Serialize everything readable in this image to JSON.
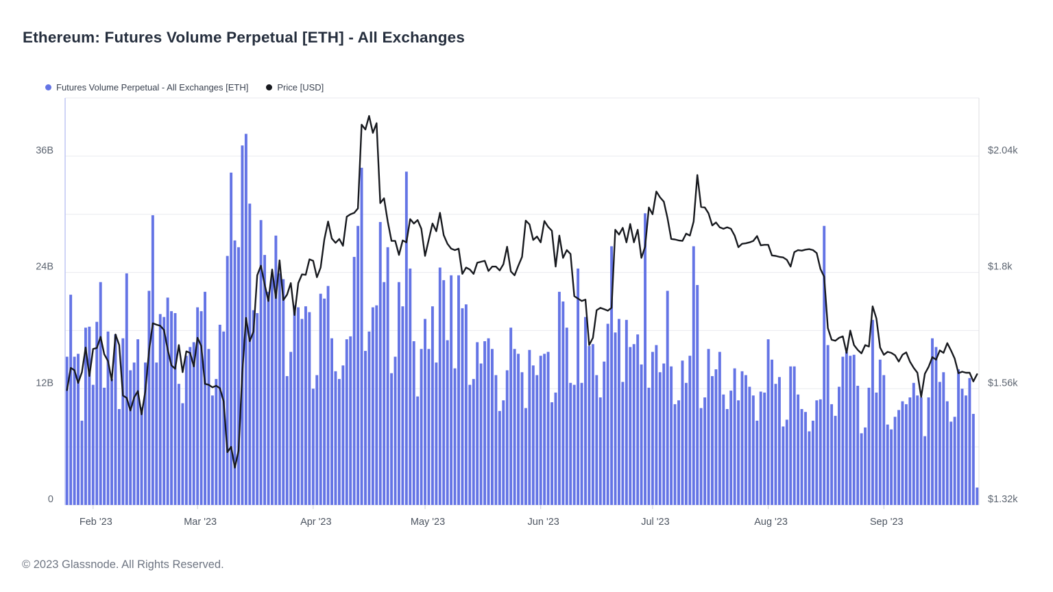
{
  "page": {
    "title": "Ethereum: Futures Volume Perpetual [ETH] - All Exchanges",
    "footer": "© 2023 Glassnode. All Rights Reserved."
  },
  "chart_data": {
    "type": "bar+line",
    "title": "Ethereum: Futures Volume Perpetual [ETH] - All Exchanges",
    "start_date": "2023-01-25",
    "end_date": "2023-09-26",
    "grid": "horizontal",
    "legend_position": "top-left",
    "x_months": [
      {
        "label": "Feb '23",
        "day_index": 7
      },
      {
        "label": "Mar '23",
        "day_index": 35
      },
      {
        "label": "Apr '23",
        "day_index": 66
      },
      {
        "label": "May '23",
        "day_index": 96
      },
      {
        "label": "Jun '23",
        "day_index": 127
      },
      {
        "label": "Jul '23",
        "day_index": 157
      },
      {
        "label": "Aug '23",
        "day_index": 188
      },
      {
        "label": "Sep '23",
        "day_index": 219
      }
    ],
    "y_left": {
      "unit": "B",
      "min": 0,
      "max": 42,
      "grid_step": 6,
      "ticks": [
        {
          "value": 0,
          "label": "0"
        },
        {
          "value": 12,
          "label": "12B"
        },
        {
          "value": 24,
          "label": "24B"
        },
        {
          "value": 36,
          "label": "36B"
        }
      ]
    },
    "y_right": {
      "unit": "USD",
      "min": 1320,
      "max": 2160,
      "ticks": [
        {
          "value": 1320,
          "label": "$1.32k"
        },
        {
          "value": 1560,
          "label": "$1.56k"
        },
        {
          "value": 1800,
          "label": "$1.8k"
        },
        {
          "value": 2040,
          "label": "$2.04k"
        }
      ]
    },
    "series": [
      {
        "name": "Futures Volume Perpetual - All Exchanges [ETH]",
        "type": "bar",
        "axis": "left",
        "color": "#6474e5",
        "unit": "billion USD",
        "values": [
          15.3,
          21.7,
          15.3,
          15.6,
          8.7,
          18.3,
          18.4,
          12.4,
          18.9,
          23.0,
          12.1,
          17.9,
          13.0,
          17.6,
          9.9,
          17.2,
          23.9,
          13.9,
          14.7,
          17.1,
          10.1,
          14.7,
          22.1,
          29.9,
          14.7,
          19.7,
          19.4,
          21.4,
          20.0,
          19.8,
          12.5,
          10.5,
          15.4,
          16.3,
          16.8,
          20.4,
          20.0,
          22.0,
          16.1,
          11.3,
          13.0,
          18.6,
          17.9,
          25.7,
          34.3,
          27.3,
          26.6,
          37.1,
          38.3,
          31.1,
          20.1,
          19.8,
          29.4,
          25.8,
          22.0,
          23.7,
          27.8,
          23.9,
          23.3,
          13.3,
          15.8,
          20.6,
          20.4,
          19.2,
          20.5,
          19.9,
          12.0,
          13.4,
          21.8,
          21.3,
          22.6,
          17.2,
          13.8,
          13.0,
          14.4,
          17.1,
          17.4,
          25.6,
          28.8,
          34.8,
          15.9,
          17.9,
          20.4,
          20.6,
          29.2,
          23.0,
          26.6,
          13.6,
          15.3,
          23.0,
          20.5,
          34.4,
          24.4,
          16.9,
          11.2,
          16.1,
          19.2,
          16.1,
          20.5,
          14.7,
          24.5,
          23.2,
          17.0,
          23.7,
          14.1,
          23.7,
          20.3,
          20.7,
          12.4,
          13.0,
          16.8,
          14.6,
          16.9,
          17.2,
          16.1,
          13.4,
          9.7,
          10.8,
          13.9,
          18.3,
          16.1,
          15.6,
          13.7,
          10.0,
          16.0,
          14.4,
          13.4,
          15.4,
          15.6,
          15.8,
          10.6,
          11.6,
          22.0,
          21.0,
          18.3,
          12.6,
          12.4,
          24.4,
          12.6,
          19.4,
          16.4,
          16.6,
          13.4,
          11.1,
          14.8,
          18.7,
          26.7,
          17.8,
          19.2,
          12.7,
          19.1,
          16.3,
          16.6,
          17.6,
          14.5,
          30.1,
          12.1,
          15.8,
          16.5,
          13.7,
          14.6,
          22.1,
          14.3,
          10.4,
          10.8,
          14.9,
          12.6,
          15.4,
          26.7,
          22.7,
          10.0,
          11.1,
          16.1,
          13.3,
          14.0,
          15.8,
          11.4,
          9.9,
          11.8,
          14.1,
          10.8,
          13.8,
          13.4,
          12.2,
          11.3,
          8.7,
          11.7,
          11.6,
          17.1,
          15.0,
          12.5,
          13.2,
          8.1,
          8.8,
          14.3,
          14.3,
          11.4,
          9.9,
          9.6,
          7.6,
          8.7,
          10.8,
          10.9,
          28.8,
          16.5,
          10.4,
          9.2,
          12.2,
          15.3,
          15.8,
          15.4,
          15.5,
          12.3,
          7.4,
          8.0,
          12.1,
          19.1,
          11.6,
          15.0,
          13.4,
          8.3,
          7.8,
          9.1,
          9.8,
          10.7,
          10.4,
          11.1,
          12.6,
          11.3,
          11.1,
          7.1,
          11.1,
          17.2,
          16.3,
          12.7,
          13.7,
          10.7,
          8.6,
          9.1,
          14.0,
          12.0,
          11.3,
          13.1,
          9.4,
          1.8
        ]
      },
      {
        "name": "Price [USD]",
        "type": "line",
        "axis": "right",
        "color": "#17191e",
        "unit": "USD",
        "values": [
          1557,
          1603,
          1598,
          1572,
          1594,
          1645,
          1586,
          1642,
          1644,
          1667,
          1631,
          1617,
          1577,
          1672,
          1650,
          1546,
          1541,
          1515,
          1542,
          1555,
          1507,
          1555,
          1638,
          1695,
          1692,
          1690,
          1681,
          1641,
          1608,
          1601,
          1650,
          1594,
          1637,
          1634,
          1606,
          1665,
          1648,
          1570,
          1568,
          1563,
          1566,
          1561,
          1534,
          1429,
          1440,
          1397,
          1432,
          1592,
          1706,
          1658,
          1678,
          1794,
          1814,
          1775,
          1741,
          1806,
          1747,
          1825,
          1743,
          1754,
          1778,
          1712,
          1778,
          1796,
          1795,
          1827,
          1824,
          1790,
          1810,
          1868,
          1905,
          1870,
          1861,
          1869,
          1855,
          1915,
          1920,
          1923,
          1932,
          2105,
          2095,
          2123,
          2088,
          2108,
          1943,
          1953,
          1905,
          1865,
          1865,
          1836,
          1866,
          1862,
          1910,
          1901,
          1908,
          1890,
          1834,
          1868,
          1901,
          1885,
          1923,
          1877,
          1859,
          1849,
          1846,
          1849,
          1797,
          1810,
          1806,
          1797,
          1820,
          1822,
          1824,
          1803,
          1812,
          1812,
          1804,
          1817,
          1853,
          1802,
          1794,
          1814,
          1832,
          1907,
          1899,
          1867,
          1874,
          1862,
          1906,
          1894,
          1886,
          1812,
          1876,
          1830,
          1846,
          1838,
          1751,
          1746,
          1741,
          1744,
          1650,
          1665,
          1722,
          1727,
          1724,
          1721,
          1727,
          1888,
          1878,
          1892,
          1862,
          1900,
          1862,
          1888,
          1830,
          1853,
          1934,
          1920,
          1967,
          1955,
          1946,
          1912,
          1869,
          1868,
          1866,
          1865,
          1880,
          1876,
          1905,
          2001,
          1935,
          1934,
          1922,
          1897,
          1903,
          1893,
          1890,
          1893,
          1890,
          1876,
          1852,
          1859,
          1860,
          1862,
          1865,
          1875,
          1856,
          1857,
          1857,
          1835,
          1834,
          1832,
          1831,
          1826,
          1812,
          1842,
          1846,
          1845,
          1847,
          1848,
          1846,
          1840,
          1807,
          1791,
          1685,
          1661,
          1659,
          1665,
          1668,
          1634,
          1680,
          1650,
          1640,
          1633,
          1650,
          1647,
          1730,
          1705,
          1645,
          1630,
          1636,
          1634,
          1629,
          1616,
          1630,
          1635,
          1616,
          1603,
          1593,
          1543,
          1591,
          1605,
          1625,
          1620,
          1639,
          1634,
          1654,
          1639,
          1622,
          1592,
          1595,
          1593,
          1593,
          1575,
          1590
        ]
      }
    ]
  }
}
